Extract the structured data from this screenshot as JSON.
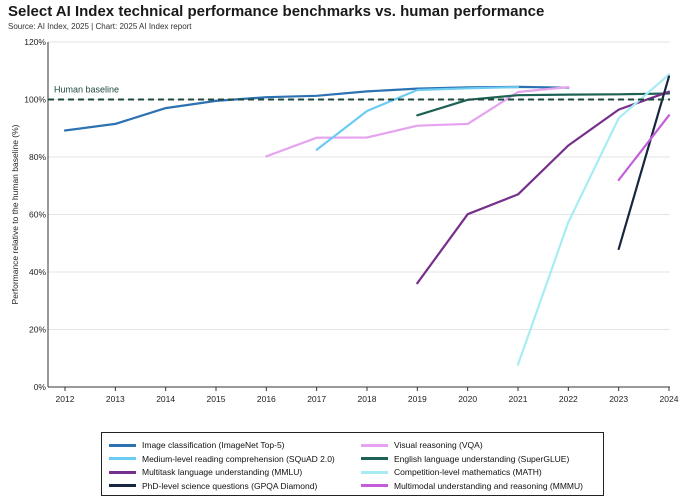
{
  "title": "Select AI Index technical performance benchmarks vs. human performance",
  "subtitle": "Source: AI Index, 2025 | Chart: 2025 AI Index report",
  "chart_data": {
    "type": "line",
    "ylabel": "Performance relative to the human baseline (%)",
    "xlabel": "",
    "xlim": [
      2012,
      2024
    ],
    "ylim": [
      0,
      120
    ],
    "x_ticks": [
      "2012",
      "2013",
      "2014",
      "2015",
      "2016",
      "2017",
      "2018",
      "2019",
      "2020",
      "2021",
      "2022",
      "2023",
      "2024"
    ],
    "y_ticks": [
      "0%",
      "20%",
      "40%",
      "60%",
      "80%",
      "100%",
      "120%"
    ],
    "grid": "horizontal",
    "baseline": {
      "label": "Human baseline",
      "value": 100
    },
    "legend_position": "bottom",
    "series": [
      {
        "name": "Image classification (ImageNet Top-5)",
        "color": "#2c72b2",
        "x": [
          2012,
          2013,
          2014,
          2015,
          2016,
          2017,
          2018,
          2019,
          2020,
          2021,
          2022
        ],
        "y": [
          89.2,
          91.5,
          97,
          99.5,
          100.8,
          101.3,
          102.8,
          103.8,
          104.2,
          104.4,
          104.1
        ]
      },
      {
        "name": "Visual reasoning (VQA)",
        "color": "#e6a3ef",
        "x": [
          2016,
          2017,
          2018,
          2019,
          2020,
          2021,
          2022
        ],
        "y": [
          80.2,
          86.7,
          86.8,
          90.9,
          91.5,
          102.6,
          104.3
        ]
      },
      {
        "name": "Medium-level reading comprehension (SQuAD 2.0)",
        "color": "#6ccbf2",
        "x": [
          2017,
          2018,
          2019,
          2020,
          2021
        ],
        "y": [
          82.5,
          96,
          103.3,
          103.9,
          104.3
        ]
      },
      {
        "name": "English language understanding (SuperGLUE)",
        "color": "#1e6155",
        "x": [
          2019,
          2020,
          2021,
          2022,
          2023,
          2024
        ],
        "y": [
          94.5,
          99.9,
          101.5,
          101.7,
          101.8,
          102.1
        ]
      },
      {
        "name": "Multitask language understanding (MMLU)",
        "color": "#76308c",
        "x": [
          2019,
          2020,
          2021,
          2022,
          2023,
          2024
        ],
        "y": [
          36.1,
          60.1,
          67,
          84,
          96.5,
          102.7
        ]
      },
      {
        "name": "Competition-level mathematics (MATH)",
        "color": "#a8ecf3",
        "x": [
          2021,
          2022,
          2023,
          2024
        ],
        "y": [
          7.8,
          57.3,
          93.5,
          108.7
        ]
      },
      {
        "name": "PhD-level science questions (GPQA Diamond)",
        "color": "#16273f",
        "x": [
          2023,
          2024
        ],
        "y": [
          48,
          108
        ]
      },
      {
        "name": "Multimodal understanding and reasoning (MMMU)",
        "color": "#c55ddb",
        "x": [
          2023,
          2024
        ],
        "y": [
          72,
          94.5
        ]
      }
    ]
  },
  "legend_order": [
    [
      0,
      2,
      4,
      6
    ],
    [
      1,
      3,
      5,
      7
    ]
  ]
}
